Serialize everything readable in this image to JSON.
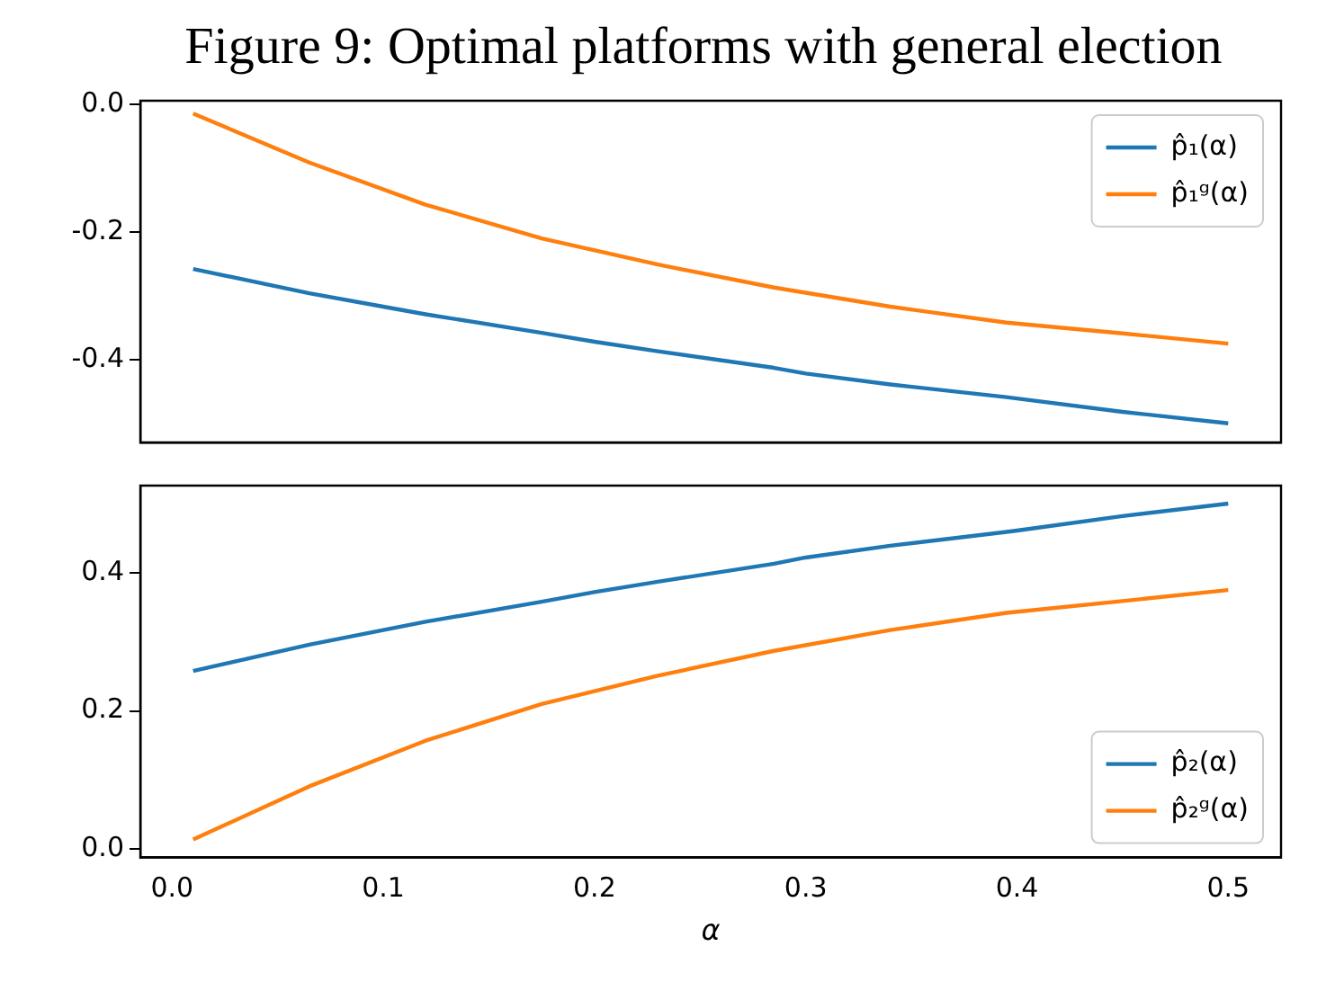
{
  "chart_data": [
    {
      "type": "line",
      "title": "Figure 9: Optimal platforms with general election",
      "x": [
        0.01,
        0.065,
        0.1,
        0.12,
        0.175,
        0.2,
        0.23,
        0.285,
        0.3,
        0.34,
        0.395,
        0.4,
        0.45,
        0.5
      ],
      "series": [
        {
          "name": "p̂₁(α)",
          "color": "#1f77b4",
          "values": [
            -0.258,
            -0.296,
            -0.317,
            -0.329,
            -0.358,
            -0.372,
            -0.387,
            -0.413,
            -0.422,
            -0.439,
            -0.459,
            -0.461,
            -0.482,
            -0.5
          ]
        },
        {
          "name": "p̂₁ᵍ(α)",
          "color": "#ff7f0e",
          "values": [
            -0.014,
            -0.091,
            null,
            -0.157,
            -0.21,
            null,
            -0.251,
            -0.287,
            null,
            -0.317,
            -0.342,
            null,
            -0.359,
            -0.375
          ]
        }
      ],
      "xlim": [
        -0.015,
        0.525
      ],
      "ylim": [
        -0.53,
        0.006
      ],
      "yticks": [
        {
          "value": 0,
          "label": "0.0"
        },
        -0.2,
        -0.4
      ],
      "legend": "top right",
      "tick_labels": "y",
      "grid": false,
      "marker": "none",
      "line_style": "solid"
    },
    {
      "type": "line",
      "xlabel": "α",
      "x": [
        0.01,
        0.065,
        0.1,
        0.12,
        0.175,
        0.2,
        0.23,
        0.285,
        0.3,
        0.34,
        0.395,
        0.4,
        0.45,
        0.5
      ],
      "series": [
        {
          "name": "p̂₂(α)",
          "color": "#1f77b4",
          "values": [
            0.258,
            0.296,
            0.317,
            0.329,
            0.358,
            0.372,
            0.387,
            0.413,
            0.422,
            0.439,
            0.459,
            0.461,
            0.482,
            0.5
          ]
        },
        {
          "name": "p̂₂ᵍ(α)",
          "color": "#ff7f0e",
          "values": [
            0.014,
            0.091,
            null,
            0.157,
            0.21,
            null,
            0.251,
            0.287,
            null,
            0.317,
            0.342,
            null,
            0.359,
            0.375
          ]
        }
      ],
      "xlim": [
        -0.015,
        0.525
      ],
      "xticks": [
        {
          "value": 0,
          "label": "0.0"
        },
        0.1,
        0.2,
        0.3,
        0.4,
        0.5
      ],
      "ylim": [
        -0.012,
        0.526
      ],
      "yticks": [
        {
          "value": 0,
          "label": "0.0"
        },
        0.2,
        0.4
      ],
      "legend": "bottom right",
      "grid": false,
      "marker": "none",
      "line_style": "solid"
    }
  ]
}
